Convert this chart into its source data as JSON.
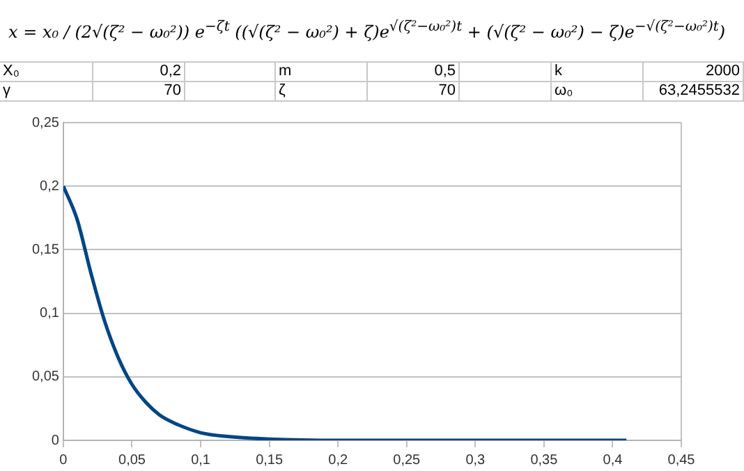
{
  "chart_data": {
    "type": "line",
    "annotations": [
      "x = x₀ / (2√(ζ² − ω₀²)) e$^{−ζt}$ ((√(ζ² − ω₀²) + ζ)e$^{√(ζ²−ω₀²)t}$ + (√(ζ² − ω₀²) − ζ)e$^{−√(ζ²−ω₀²)t}$)",
      "X₀",
      "0,2",
      "m",
      "0,5",
      "k",
      "2000",
      "γ",
      "70",
      "ζ",
      "70",
      "ω₀",
      "63,2455532"
    ],
    "x": [
      0,
      0.01,
      0.02,
      0.03,
      0.04,
      0.05,
      0.06,
      0.07,
      0.08,
      0.1,
      0.12,
      0.15,
      0.2,
      0.3,
      0.41
    ],
    "series": [
      {
        "color": "#004586",
        "values": [
          0.2,
          0.174,
          0.132,
          0.094,
          0.065,
          0.044,
          0.03,
          0.02,
          0.014,
          0.006,
          0.003,
          0.001,
          0,
          0,
          0
        ]
      }
    ],
    "xlim": [
      0,
      0.45
    ],
    "xticks": [
      0,
      {
        "value": 0.05,
        "label": "0,05"
      },
      {
        "value": 0.1,
        "label": "0,1"
      },
      {
        "value": 0.15,
        "label": "0,15"
      },
      {
        "value": 0.2,
        "label": "0,2"
      },
      {
        "value": 0.25,
        "label": "0,25"
      },
      {
        "value": 0.3,
        "label": "0,3"
      },
      {
        "value": 0.35,
        "label": "0,35"
      },
      {
        "value": 0.4,
        "label": "0,4"
      },
      {
        "value": 0.45,
        "label": "0,45"
      }
    ],
    "ylim": [
      0,
      0.25
    ],
    "yticks": [
      0,
      {
        "value": 0.05,
        "label": "0,05"
      },
      {
        "value": 0.1,
        "label": "0,1"
      },
      {
        "value": 0.15,
        "label": "0,15"
      },
      {
        "value": 0.2,
        "label": "0,2"
      },
      {
        "value": 0.25,
        "label": "0,25"
      }
    ],
    "grid": "y",
    "legend": false,
    "marker": "none",
    "line_style": "solid"
  }
}
